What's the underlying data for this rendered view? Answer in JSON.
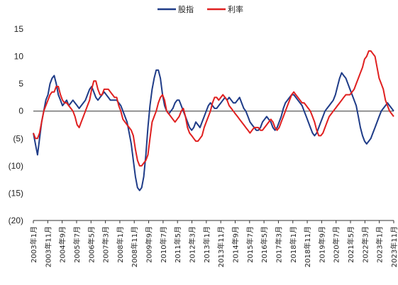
{
  "chart_data": {
    "type": "line",
    "legend": {
      "placement": "top-center"
    },
    "series": [
      {
        "name": "股指",
        "color": "#1f3c88",
        "values": [
          -4,
          -6,
          -8,
          -5,
          -2,
          0,
          2,
          3,
          5,
          6,
          6.5,
          5,
          3,
          2,
          1,
          1.5,
          2,
          1,
          1.5,
          2,
          1.5,
          1,
          0.5,
          1,
          1.5,
          2,
          3,
          4,
          4.5,
          3.5,
          2.5,
          2,
          2.5,
          3,
          3.5,
          3,
          2.5,
          2,
          2,
          2,
          2,
          1.5,
          1,
          0,
          -1,
          -2,
          -4,
          -6,
          -9,
          -12,
          -14,
          -14.5,
          -14,
          -12,
          -8,
          -3,
          1,
          4,
          6,
          7.5,
          7.5,
          6,
          3,
          1,
          0,
          -0.5,
          0,
          0.5,
          1.5,
          2,
          2,
          1,
          0,
          -1,
          -2,
          -3,
          -3.5,
          -3,
          -2,
          -2.5,
          -3,
          -2,
          -1,
          0,
          1,
          1.5,
          1,
          0.5,
          0.5,
          1,
          1.5,
          2,
          2.5,
          2,
          2.5,
          2,
          1.5,
          1.5,
          2,
          2.5,
          1.5,
          0.5,
          0,
          -1,
          -2,
          -2.5,
          -3,
          -3.5,
          -3.5,
          -3,
          -2,
          -1.5,
          -1,
          -1.5,
          -2,
          -3,
          -3.5,
          -3,
          -2,
          -1,
          0.5,
          1.5,
          2,
          2.5,
          3,
          3,
          2.5,
          2,
          1.5,
          1,
          0,
          -1,
          -2,
          -3,
          -4,
          -4.5,
          -4,
          -3,
          -2,
          -1,
          0,
          0.5,
          1,
          1.5,
          2,
          3,
          4.5,
          6,
          7,
          6.5,
          6,
          5,
          4,
          3,
          2,
          1,
          -1,
          -3,
          -4.5,
          -5.5,
          -6,
          -5.5,
          -5,
          -4,
          -3,
          -2,
          -1,
          0,
          0.5,
          1,
          1.5,
          1,
          0.5,
          0
        ],
        "value_range_note": ""
      },
      {
        "name": "利率",
        "color": "#e02020",
        "values": [
          -4,
          -5,
          -5,
          -4,
          -2,
          0,
          1,
          2,
          3,
          3.5,
          3.5,
          4.5,
          4.5,
          3,
          2,
          1.5,
          1.5,
          1,
          0.5,
          0,
          -1,
          -2.5,
          -3,
          -2,
          -1,
          0,
          1,
          2,
          4,
          5.5,
          5.5,
          4,
          3,
          3,
          4,
          4,
          4,
          3.5,
          3,
          2.5,
          2.5,
          1,
          0,
          -1.5,
          -2,
          -2.5,
          -3,
          -3.5,
          -4.5,
          -7,
          -9,
          -10,
          -10,
          -9.5,
          -9,
          -8,
          -5,
          -2,
          -1,
          0,
          1.5,
          2.5,
          3,
          2,
          0,
          -0.5,
          -1,
          -1.5,
          -2,
          -1.5,
          -1,
          0,
          0.5,
          -1,
          -3,
          -4,
          -4.5,
          -5,
          -5.5,
          -5.5,
          -5,
          -4.5,
          -3,
          -2,
          -1,
          0,
          1.5,
          2.5,
          2.5,
          2,
          2.5,
          3,
          2.5,
          2,
          1,
          0.5,
          0,
          -0.5,
          -1,
          -1.5,
          -2,
          -2.5,
          -3,
          -3.5,
          -4,
          -3.5,
          -3,
          -3,
          -3,
          -3.5,
          -3.5,
          -3,
          -2.5,
          -2,
          -1.5,
          -2,
          -3,
          -3.5,
          -3,
          -2,
          -1,
          0,
          1,
          2,
          3,
          3.5,
          3,
          2.5,
          2,
          1.5,
          1.5,
          1,
          0.5,
          0,
          -1,
          -2,
          -3.5,
          -4.5,
          -4.5,
          -4,
          -3,
          -2,
          -1,
          -0.5,
          0,
          0.5,
          1,
          1.5,
          2,
          2.5,
          3,
          3,
          3,
          3.5,
          4,
          5,
          6,
          7,
          8,
          9.5,
          10,
          11,
          11,
          10.5,
          10,
          8,
          6,
          5,
          4,
          2,
          1,
          0,
          -0.5,
          -1
        ]
      }
    ],
    "x_labels": [
      "2003年1月",
      "2003年11月",
      "2004年9月",
      "2005年7月",
      "2006年5月",
      "2007年3月",
      "2008年1月",
      "2008年11月",
      "2009年9月",
      "2010年7月",
      "2011年5月",
      "2012年3月",
      "2013年1月",
      "2013年11月",
      "2014年9月",
      "2015年7月",
      "2016年5月",
      "2017年3月",
      "2018年1月",
      "2018年11月",
      "2019年9月",
      "2020年7月",
      "2021年5月",
      "2022年3月",
      "2023年1月",
      "2023年11月"
    ],
    "y_ticks": [
      "15",
      "10",
      "5",
      "0",
      "(5)",
      "(10)",
      "(15)",
      "(20)"
    ],
    "ylim": [
      -20,
      15
    ],
    "grid": false,
    "zero_line": true
  }
}
